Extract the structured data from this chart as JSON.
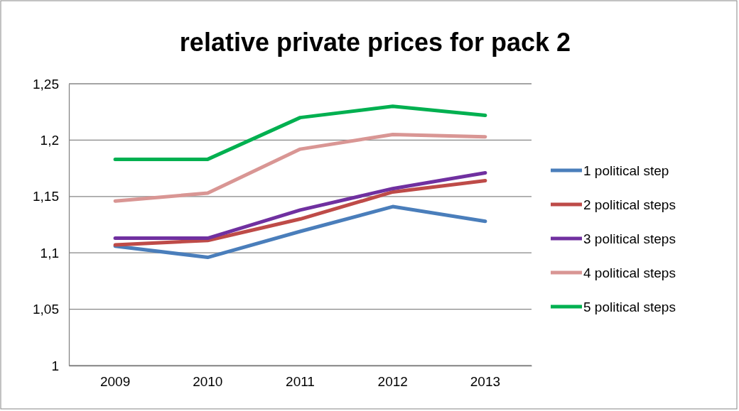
{
  "chart_data": {
    "type": "line",
    "title": "relative private prices for pack 2",
    "categories": [
      "2009",
      "2010",
      "2011",
      "2012",
      "2013"
    ],
    "series": [
      {
        "name": "1 political step",
        "color": "#4a7ebb",
        "values": [
          1.106,
          1.096,
          1.119,
          1.141,
          1.128
        ]
      },
      {
        "name": "2 political steps",
        "color": "#be4b48",
        "values": [
          1.107,
          1.111,
          1.13,
          1.154,
          1.164
        ]
      },
      {
        "name": "3 political steps",
        "color": "#7030a0",
        "values": [
          1.113,
          1.113,
          1.138,
          1.157,
          1.171
        ]
      },
      {
        "name": "4 political steps",
        "color": "#d99694",
        "values": [
          1.146,
          1.153,
          1.192,
          1.205,
          1.203
        ]
      },
      {
        "name": "5 political steps",
        "color": "#00b050",
        "values": [
          1.183,
          1.183,
          1.22,
          1.23,
          1.222
        ]
      }
    ],
    "ylim": [
      1,
      1.25
    ],
    "yticks": [
      {
        "value": 1,
        "label": "1"
      },
      {
        "value": 1.05,
        "label": "1,05"
      },
      {
        "value": 1.1,
        "label": "1,1"
      },
      {
        "value": 1.15,
        "label": "1,15"
      },
      {
        "value": 1.2,
        "label": "1,2"
      },
      {
        "value": 1.25,
        "label": "1,25"
      }
    ],
    "grid": "y",
    "legend": "right",
    "marker": "none",
    "line_style": "solid"
  }
}
